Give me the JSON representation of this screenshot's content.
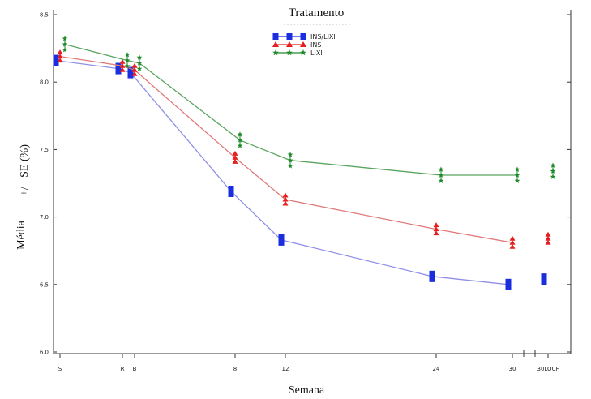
{
  "chart_data": {
    "type": "line",
    "title": "Tratamento",
    "xlabel": "Semana",
    "ylabel_left": "Média",
    "ylabel_right": "+/− SE (%)",
    "x_ticks": [
      "S",
      "R",
      "B",
      "8",
      "12",
      "24",
      "30",
      "30LOCF"
    ],
    "y_ticks": [
      "6.0",
      "6.5",
      "7.0",
      "7.5",
      "8.0",
      "8.5"
    ],
    "ylim": [
      6.0,
      8.5
    ],
    "legend_position": "top-center",
    "series": [
      {
        "name": "INS/LIXI",
        "color": "#1a2ee0",
        "line_color": "#8f8fe6",
        "marker": "square",
        "values": [
          8.16,
          8.1,
          8.07,
          7.19,
          6.83,
          6.56,
          6.5,
          6.54
        ]
      },
      {
        "name": "INS",
        "color": "#e51e1e",
        "line_color": "#e07a7a",
        "marker": "triangle",
        "values": [
          8.19,
          8.12,
          8.09,
          7.44,
          7.13,
          6.91,
          6.81,
          6.84
        ]
      },
      {
        "name": "LIXI",
        "color": "#1d8a2a",
        "line_color": "#5aa55f",
        "marker": "star",
        "values": [
          8.28,
          8.16,
          8.14,
          7.57,
          7.42,
          7.31,
          7.31,
          7.34
        ]
      }
    ]
  }
}
